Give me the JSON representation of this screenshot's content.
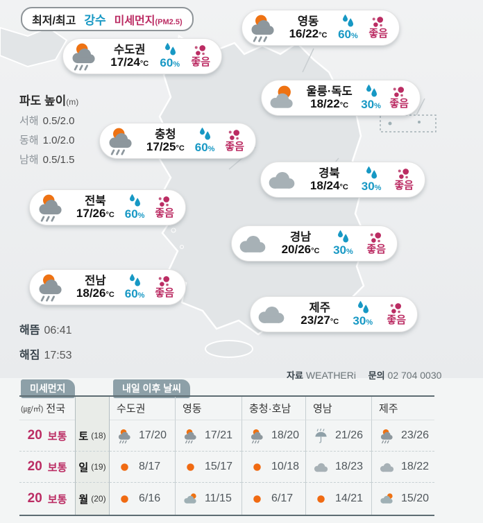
{
  "legend": {
    "minmax": "최저/최고",
    "precip": "강수",
    "dust": "미세먼지",
    "dust_sub": "(PM2.5)"
  },
  "units": {
    "temp": "°C",
    "percent": "%"
  },
  "waves": {
    "title": "파도 높이",
    "unit": "(m)",
    "rows": [
      {
        "label": "서해",
        "value": "0.5/2.0"
      },
      {
        "label": "동해",
        "value": "1.0/2.0"
      },
      {
        "label": "남해",
        "value": "0.5/1.5"
      }
    ]
  },
  "sun": {
    "rise_label": "해뜸",
    "rise": "06:41",
    "set_label": "해짐",
    "set": "17:53"
  },
  "credit": {
    "source_label": "자료",
    "source": "WEATHERi",
    "contact_label": "문의",
    "phone": "02 704 0030"
  },
  "icons": {
    "precip": "raindrops",
    "dust": "dust-dots"
  },
  "cards": [
    {
      "region": "수도권",
      "temp": "17/24",
      "precip": "60",
      "dust": "좋음",
      "icon": "rain-sun"
    },
    {
      "region": "영동",
      "temp": "16/22",
      "precip": "60",
      "dust": "좋음",
      "icon": "rain-sun"
    },
    {
      "region": "울릉·독도",
      "temp": "18/22",
      "precip": "30",
      "dust": "좋음",
      "icon": "sun-cloud"
    },
    {
      "region": "충청",
      "temp": "17/25",
      "precip": "60",
      "dust": "좋음",
      "icon": "rain-sun"
    },
    {
      "region": "경북",
      "temp": "18/24",
      "precip": "30",
      "dust": "좋음",
      "icon": "cloud"
    },
    {
      "region": "전북",
      "temp": "17/26",
      "precip": "60",
      "dust": "좋음",
      "icon": "rain-sun"
    },
    {
      "region": "경남",
      "temp": "20/26",
      "precip": "30",
      "dust": "좋음",
      "icon": "cloud"
    },
    {
      "region": "전남",
      "temp": "18/26",
      "precip": "60",
      "dust": "좋음",
      "icon": "rain-sun"
    },
    {
      "region": "제주",
      "temp": "23/27",
      "precip": "30",
      "dust": "좋음",
      "icon": "cloud"
    }
  ],
  "forecast": {
    "dust_tab": "미세먼지",
    "weather_tab": "내일 이후 날씨",
    "dust_unit": "(㎍/㎥)",
    "dust_region": "전국",
    "columns": [
      "수도권",
      "영동",
      "충청·호남",
      "영남",
      "제주"
    ],
    "rows": [
      {
        "dust_value": "20",
        "dust_grade": "보통",
        "day": "토",
        "date": "(18)",
        "cells": [
          {
            "icon": "rain-sun",
            "temp": "17/20"
          },
          {
            "icon": "rain-sun",
            "temp": "17/21"
          },
          {
            "icon": "rain-sun",
            "temp": "18/20"
          },
          {
            "icon": "umbrella",
            "temp": "21/26"
          },
          {
            "icon": "rain-sun",
            "temp": "23/26"
          }
        ]
      },
      {
        "dust_value": "20",
        "dust_grade": "보통",
        "day": "일",
        "date": "(19)",
        "cells": [
          {
            "icon": "sun",
            "temp": "8/17"
          },
          {
            "icon": "sun",
            "temp": "15/17"
          },
          {
            "icon": "sun",
            "temp": "10/18"
          },
          {
            "icon": "cloud",
            "temp": "18/23"
          },
          {
            "icon": "cloud",
            "temp": "18/22"
          }
        ]
      },
      {
        "dust_value": "20",
        "dust_grade": "보통",
        "day": "월",
        "date": "(20)",
        "cells": [
          {
            "icon": "sun",
            "temp": "6/16"
          },
          {
            "icon": "cloud-sun",
            "temp": "11/15"
          },
          {
            "icon": "sun",
            "temp": "6/17"
          },
          {
            "icon": "sun",
            "temp": "14/21"
          },
          {
            "icon": "cloud-sun",
            "temp": "15/20"
          }
        ]
      }
    ]
  },
  "colors": {
    "precip_blue": "#1798c4",
    "dust_magenta": "#bb2c63",
    "sun_orange": "#ee7213",
    "cloud_gray": "#8d979d"
  }
}
